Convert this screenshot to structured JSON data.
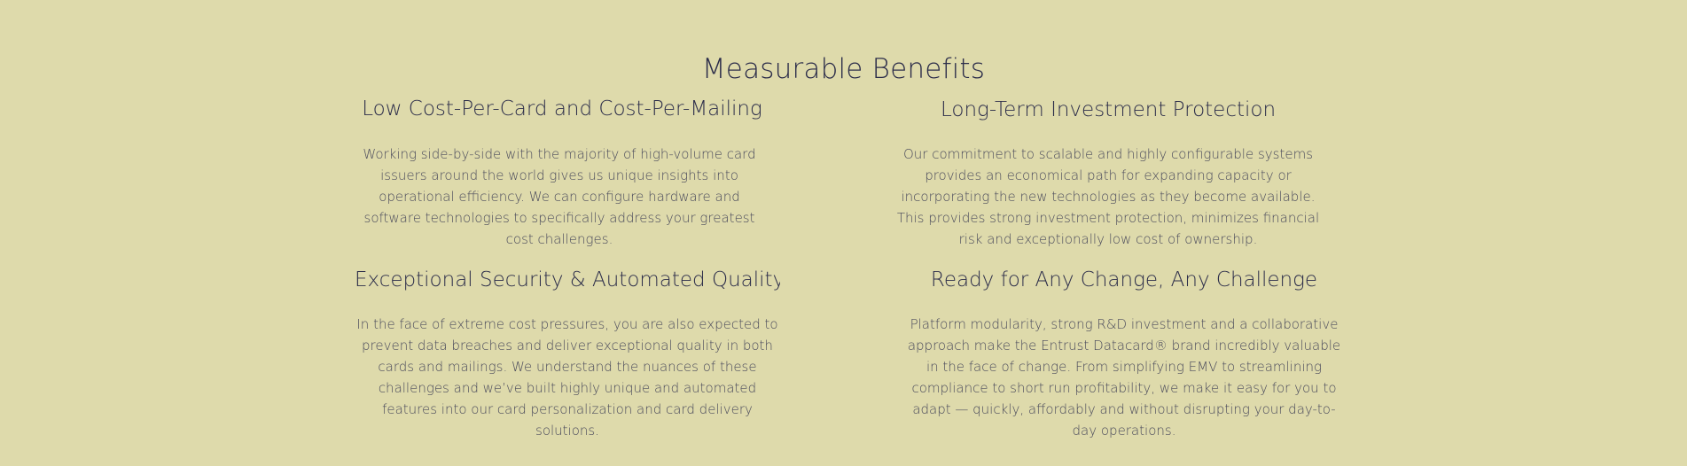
{
  "section": {
    "title": "Measurable Benefits"
  },
  "benefits": [
    {
      "title": "Low Cost-Per-Card and Cost-Per-Mailing",
      "body": "Working side-by-side with the majority of high-volume card issuers around the world gives us unique insights into operational efficiency. We can configure hardware and software technologies to specifically address your greatest cost challenges."
    },
    {
      "title": "Long-Term Investment Protection",
      "body": "Our commitment to scalable and highly configurable systems provides an economical path for expanding capacity or incorporating the new technologies as they become available. This provides strong investment protection, minimizes financial risk and exceptionally low cost of ownership."
    },
    {
      "title": "Exceptional Security & Automated Quality",
      "body": "In the face of extreme cost pressures, you are also expected to prevent data breaches and deliver exceptional quality in both cards and mailings. We understand the nuances of these challenges and we’ve built highly unique and automated features into our card personalization and card delivery solutions."
    },
    {
      "title": "Ready for Any Change, Any Challenge",
      "body": "Platform modularity, strong R&D investment and a collaborative approach make the Entrust Datacard® brand incredibly valuable in the face of change. From simplifying EMV to streamlining compliance to short run profitability, we make it easy for you to adapt — quickly, affordably and without disrupting your day-to-day operations."
    }
  ]
}
